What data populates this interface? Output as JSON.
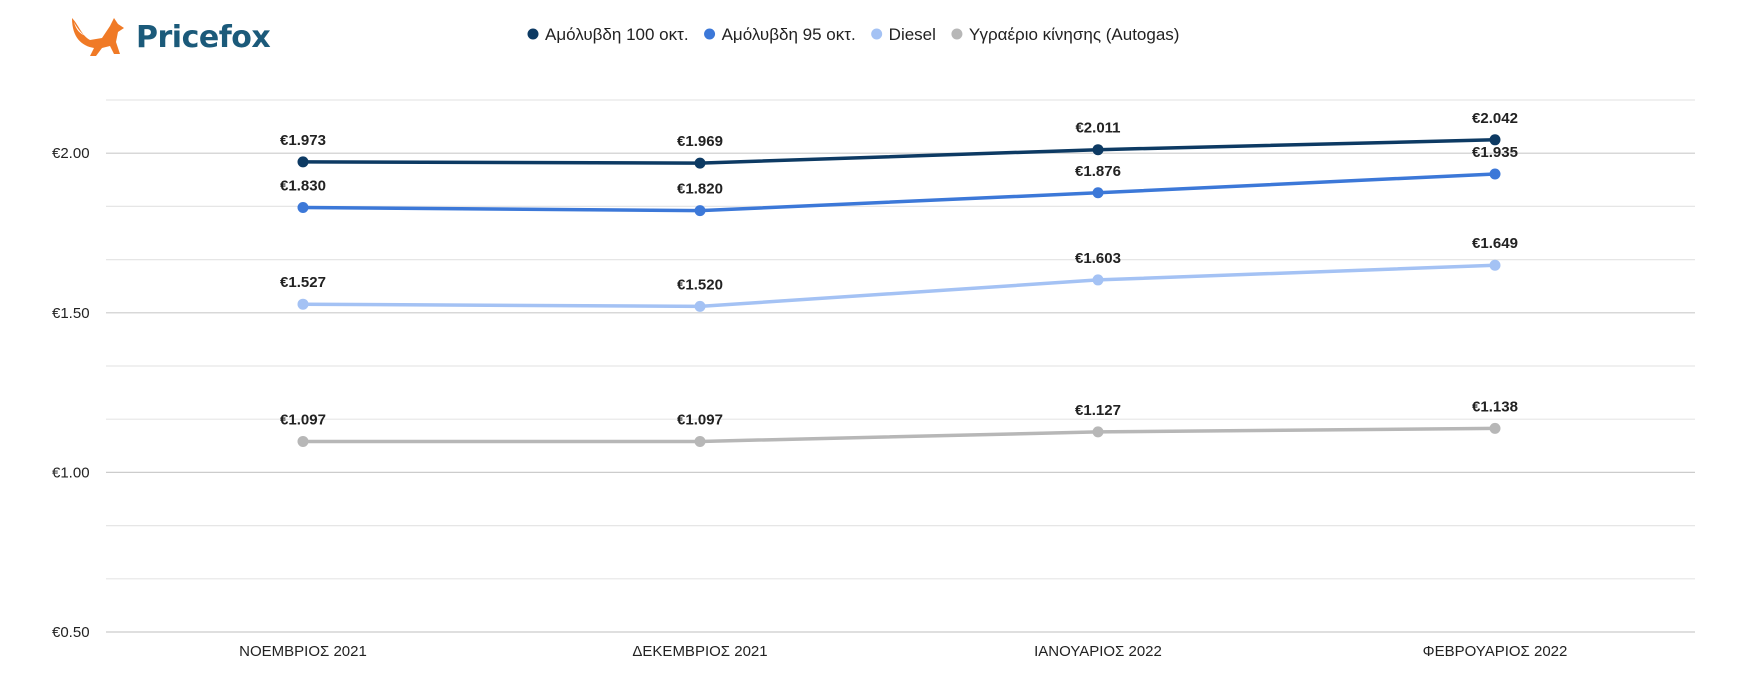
{
  "brand": {
    "name": "Pricefox",
    "logo_color": "#f07a26",
    "text_color": "#1b5a7a"
  },
  "chart_data": {
    "type": "line",
    "title": "",
    "xlabel": "",
    "ylabel": "",
    "categories": [
      "ΝΟΕΜΒΡΙΟΣ 2021",
      "ΔΕΚΕΜΒΡΙΟΣ 2021",
      "ΙΑΝΟΥΑΡΙΟΣ 2022",
      "ΦΕΒΡΟΥΑΡΙΟΣ 2022"
    ],
    "ylim": [
      0.5,
      2.1667
    ],
    "yticks": [
      0.5,
      1.0,
      1.5,
      2.0
    ],
    "ytick_labels": [
      "€0.50",
      "€1.00",
      "€1.50",
      "€2.00"
    ],
    "grid": true,
    "legend_position": "top",
    "series": [
      {
        "name": "Αμόλυβδη 100 οκτ.",
        "color": "#0d3a63",
        "values": [
          1.973,
          1.969,
          2.011,
          2.042
        ],
        "labels": [
          "€1.973",
          "€1.969",
          "€2.011",
          "€2.042"
        ]
      },
      {
        "name": "Αμόλυβδη 95 οκτ.",
        "color": "#3c78d8",
        "values": [
          1.83,
          1.82,
          1.876,
          1.935
        ],
        "labels": [
          "€1.830",
          "€1.820",
          "€1.876",
          "€1.935"
        ]
      },
      {
        "name": "Diesel",
        "color": "#a4c2f4",
        "values": [
          1.527,
          1.52,
          1.603,
          1.649
        ],
        "labels": [
          "€1.527",
          "€1.520",
          "€1.603",
          "€1.649"
        ]
      },
      {
        "name": "Υγραέριο κίνησης (Autogas)",
        "color": "#b7b7b7",
        "values": [
          1.097,
          1.097,
          1.127,
          1.138
        ],
        "labels": [
          "€1.097",
          "€1.097",
          "€1.127",
          "€1.138"
        ]
      }
    ]
  }
}
